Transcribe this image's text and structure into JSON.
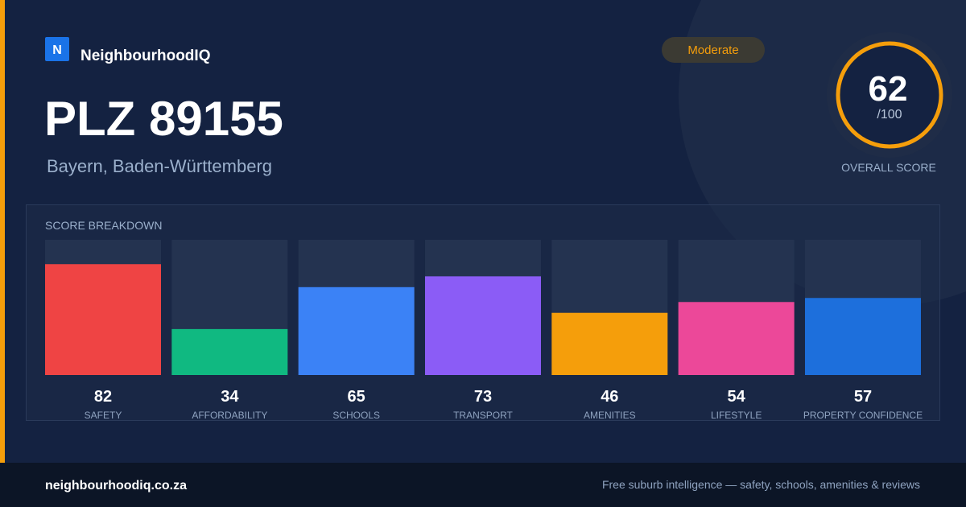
{
  "brand": {
    "logo_letter": "N",
    "name": "NeighbourhoodIQ"
  },
  "badge": "Moderate",
  "title": "PLZ 89155",
  "location": "Bayern, Baden-Württemberg",
  "score": {
    "value": 62,
    "max_label": "/100",
    "caption": "OVERALL SCORE"
  },
  "breakdown": {
    "title": "SCORE BREAKDOWN",
    "ylim": [
      0,
      100
    ],
    "categories": [
      "SAFETY",
      "AFFORDABILITY",
      "SCHOOLS",
      "TRANSPORT",
      "AMENITIES",
      "LIFESTYLE",
      "PROPERTY CONFIDENCE"
    ],
    "values": [
      82,
      34,
      65,
      73,
      46,
      54,
      57
    ],
    "colors": [
      "#ef4444",
      "#10b981",
      "#3b82f6",
      "#8b5cf6",
      "#f59e0b",
      "#ec4899",
      "#1d6fdc"
    ]
  },
  "footer": {
    "site": "neighbourhoodiq.co.za",
    "tagline": "Free suburb intelligence — safety, schools, amenities & reviews"
  }
}
